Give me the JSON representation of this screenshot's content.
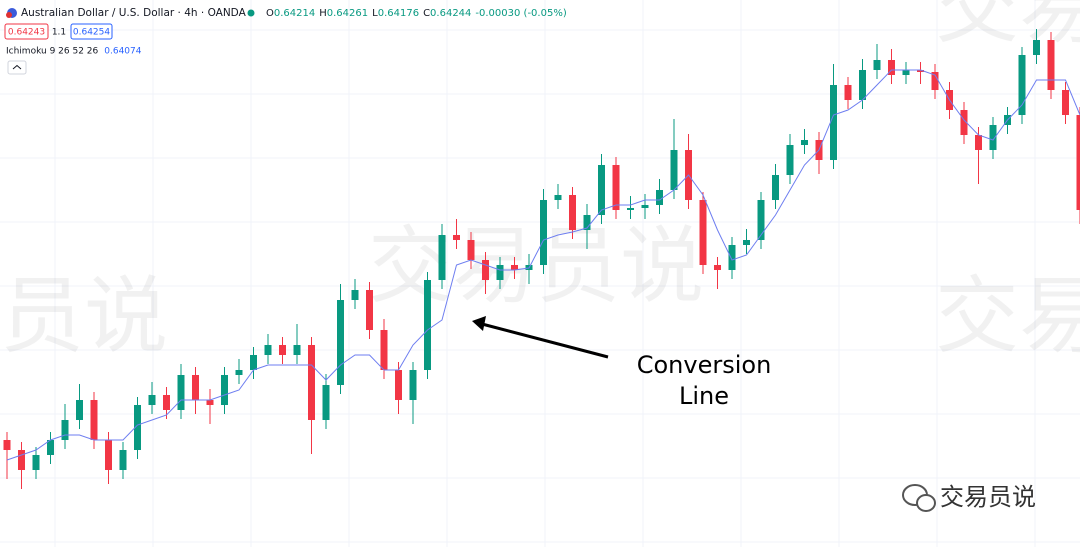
{
  "header": {
    "symbol": "Australian Dollar / U.S. Dollar · 4h · OANDA",
    "ohlc": [
      {
        "label": "O",
        "value": "0.64214"
      },
      {
        "label": "H",
        "value": "0.64261"
      },
      {
        "label": "L",
        "value": "0.64176"
      },
      {
        "label": "C",
        "value": "0.64244"
      }
    ],
    "change": "-0.00030 (-0.05%)",
    "sell": "0.64243",
    "spread": "1.1",
    "buy": "0.64254",
    "indicator": "Ichimoku 9 26 52 26",
    "indicator_value": "0.64074"
  },
  "watermark": "交易员说",
  "logo": "交易员说",
  "chart_data": {
    "type": "candlestick",
    "ylim": [
      0.63917,
      0.64464
    ],
    "up_color": "#089981",
    "down_color": "#f23645",
    "open": [
      0.64024,
      0.64014,
      0.63994,
      0.64009,
      0.64024,
      0.64044,
      0.64064,
      0.64024,
      0.63994,
      0.64014,
      0.64059,
      0.64069,
      0.64054,
      0.64089,
      0.64064,
      0.64059,
      0.64089,
      0.64094,
      0.64109,
      0.64119,
      0.64109,
      0.64119,
      0.64044,
      0.64079,
      0.64164,
      0.64174,
      0.64134,
      0.64094,
      0.64064,
      0.64094,
      0.64184,
      0.64229,
      0.64224,
      0.64204,
      0.64184,
      0.64199,
      0.64194,
      0.64199,
      0.64264,
      0.64269,
      0.64234,
      0.64249,
      0.64299,
      0.64254,
      0.64256,
      0.64259,
      0.64274,
      0.64314,
      0.64264,
      0.64199,
      0.64194,
      0.64219,
      0.64224,
      0.64264,
      0.64289,
      0.64319,
      0.64324,
      0.64304,
      0.64379,
      0.64364,
      0.64394,
      0.64404,
      0.64389,
      0.64394,
      0.64392,
      0.64374,
      0.64354,
      0.64329,
      0.64314,
      0.64339,
      0.64349,
      0.64409,
      0.64424,
      0.64374,
      0.64349
    ],
    "high": [
      0.64032,
      0.64022,
      0.64017,
      0.64032,
      0.6406,
      0.6408,
      0.64072,
      0.64032,
      0.64022,
      0.64067,
      0.64082,
      0.64077,
      0.641,
      0.64097,
      0.64075,
      0.64097,
      0.64105,
      0.64117,
      0.6413,
      0.64127,
      0.6414,
      0.64127,
      0.6409,
      0.6418,
      0.64185,
      0.64182,
      0.64145,
      0.64102,
      0.64102,
      0.64192,
      0.6424,
      0.64245,
      0.64232,
      0.64212,
      0.64207,
      0.64207,
      0.6421,
      0.64275,
      0.6428,
      0.64277,
      0.6426,
      0.6431,
      0.64307,
      0.64268,
      0.6427,
      0.64285,
      0.64345,
      0.6433,
      0.64272,
      0.64207,
      0.64227,
      0.64235,
      0.64272,
      0.643,
      0.6433,
      0.64335,
      0.64332,
      0.644,
      0.64387,
      0.64405,
      0.6442,
      0.64415,
      0.64402,
      0.64402,
      0.644,
      0.64382,
      0.64362,
      0.64337,
      0.64347,
      0.64357,
      0.64417,
      0.64435,
      0.64432,
      0.64382,
      0.64357
    ],
    "low": [
      0.63985,
      0.63975,
      0.63985,
      0.64,
      0.64015,
      0.64035,
      0.64015,
      0.6398,
      0.63985,
      0.64005,
      0.6405,
      0.64045,
      0.64045,
      0.6405,
      0.6404,
      0.6405,
      0.6408,
      0.64085,
      0.641,
      0.641,
      0.641,
      0.6401,
      0.64035,
      0.6407,
      0.64155,
      0.64125,
      0.64085,
      0.6405,
      0.6404,
      0.64085,
      0.64175,
      0.64215,
      0.64195,
      0.6417,
      0.64175,
      0.64185,
      0.6418,
      0.6419,
      0.64255,
      0.64225,
      0.64215,
      0.6424,
      0.64245,
      0.64245,
      0.64245,
      0.6425,
      0.64265,
      0.64255,
      0.6419,
      0.64175,
      0.64185,
      0.6421,
      0.64215,
      0.64255,
      0.6428,
      0.6431,
      0.6429,
      0.64295,
      0.64355,
      0.64355,
      0.64385,
      0.6438,
      0.6438,
      0.6438,
      0.64365,
      0.64345,
      0.6432,
      0.6428,
      0.64305,
      0.6433,
      0.6434,
      0.644,
      0.64365,
      0.6434,
      0.6424
    ],
    "close": [
      0.64014,
      0.63994,
      0.64009,
      0.64024,
      0.64044,
      0.64064,
      0.64024,
      0.63994,
      0.64014,
      0.64059,
      0.64069,
      0.64054,
      0.64089,
      0.64064,
      0.64059,
      0.64089,
      0.64094,
      0.64109,
      0.64119,
      0.64109,
      0.64119,
      0.64044,
      0.64079,
      0.64164,
      0.64174,
      0.64134,
      0.64094,
      0.64064,
      0.64094,
      0.64184,
      0.64229,
      0.64224,
      0.64204,
      0.64184,
      0.64199,
      0.64194,
      0.64199,
      0.64264,
      0.64269,
      0.64234,
      0.64249,
      0.64299,
      0.64254,
      0.64256,
      0.64259,
      0.64274,
      0.64314,
      0.64264,
      0.64199,
      0.64194,
      0.64219,
      0.64224,
      0.64264,
      0.64289,
      0.64319,
      0.64324,
      0.64304,
      0.64379,
      0.64364,
      0.64394,
      0.64404,
      0.64389,
      0.64394,
      0.64392,
      0.64374,
      0.64354,
      0.64329,
      0.64314,
      0.64339,
      0.64349,
      0.64409,
      0.64424,
      0.64374,
      0.64349,
      0.64254
    ],
    "conversion_line": {
      "color": "#6e7ef0",
      "values": [
        0.64004,
        0.64009,
        0.64014,
        0.64024,
        0.64029,
        0.64029,
        0.64024,
        0.64024,
        0.64024,
        0.64039,
        0.64044,
        0.64049,
        0.64064,
        0.64064,
        0.64064,
        0.64069,
        0.64074,
        0.64094,
        0.64099,
        0.64099,
        0.64099,
        0.64099,
        0.64084,
        0.64099,
        0.64109,
        0.64109,
        0.64094,
        0.64094,
        0.64119,
        0.64134,
        0.64144,
        0.64199,
        0.64204,
        0.64199,
        0.64194,
        0.64194,
        0.64196,
        0.64224,
        0.64229,
        0.64232,
        0.64236,
        0.64254,
        0.64259,
        0.64259,
        0.64264,
        0.64264,
        0.64274,
        0.64289,
        0.64269,
        0.64234,
        0.64204,
        0.64209,
        0.64229,
        0.64249,
        0.64274,
        0.64299,
        0.64314,
        0.64349,
        0.64354,
        0.64364,
        0.64379,
        0.64394,
        0.64394,
        0.64394,
        0.64389,
        0.64364,
        0.64344,
        0.64329,
        0.64324,
        0.64344,
        0.64359,
        0.64384,
        0.64384,
        0.64384,
        0.64349
      ]
    },
    "annotation": [
      "Conversion",
      "Line"
    ]
  }
}
